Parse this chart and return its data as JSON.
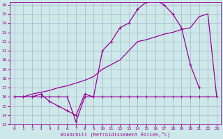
{
  "xlabel": "Windchill (Refroidissement éolien,°C)",
  "bg_color": "#cce8e8",
  "grid_color": "#aab4cc",
  "line_color": "#990099",
  "xmin": 0,
  "xmax": 23,
  "ymin": 13,
  "ymax": 26,
  "curve_temp_x": [
    0,
    1,
    2,
    3,
    4,
    5,
    6,
    7,
    8,
    9,
    10,
    11,
    12,
    13,
    14,
    15,
    16,
    17,
    18,
    19,
    20,
    21
  ],
  "curve_temp_y": [
    16,
    16,
    16,
    16.3,
    15.5,
    15,
    14.5,
    14,
    16.3,
    16,
    21,
    22,
    23.5,
    24,
    25.5,
    26.3,
    26.5,
    26,
    25,
    23.5,
    19.5,
    17
  ],
  "curve_wc_x": [
    0,
    1,
    2,
    3,
    4,
    5,
    6,
    7,
    8,
    9,
    10,
    11,
    12,
    13,
    14,
    15,
    16,
    17,
    18,
    19,
    20,
    21,
    22,
    23
  ],
  "curve_wc_y": [
    16,
    16,
    16,
    16,
    16,
    16,
    16,
    13.3,
    16,
    16,
    16,
    16,
    16,
    16,
    16,
    16,
    16,
    16,
    16,
    16,
    16,
    16,
    16,
    16
  ],
  "curve_diag_x": [
    0,
    1,
    2,
    3,
    4,
    5,
    6,
    7,
    8,
    9,
    10,
    11,
    12,
    13,
    14,
    15,
    16,
    17,
    18,
    19,
    20,
    21,
    22,
    23
  ],
  "curve_diag_y": [
    16,
    16,
    16.3,
    16.5,
    16.7,
    17,
    17.2,
    17.5,
    17.8,
    18.2,
    19,
    19.5,
    20,
    21,
    22,
    22.2,
    22.5,
    22.8,
    23,
    23.3,
    23.5,
    24.7,
    25,
    16
  ]
}
